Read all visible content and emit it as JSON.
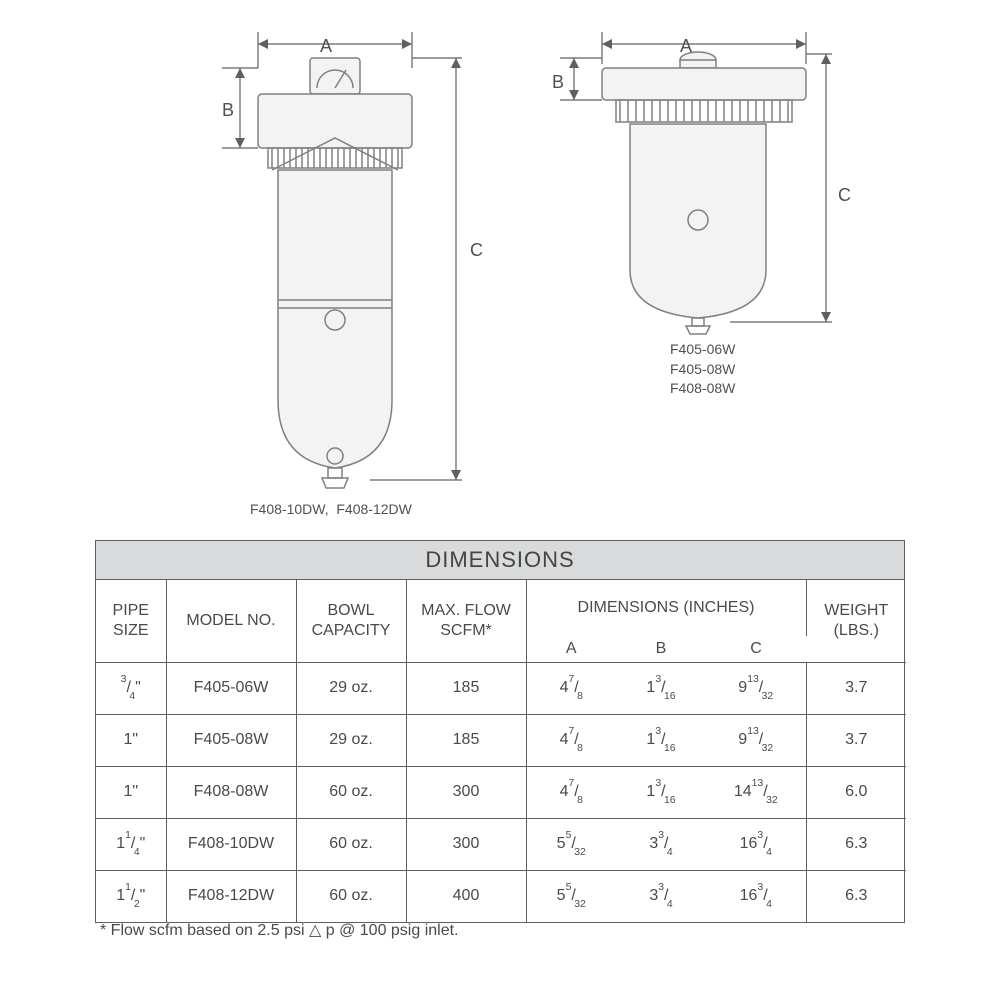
{
  "title": "DIMENSIONS",
  "diagrams": {
    "left": {
      "dim_labels": {
        "A": "A",
        "B": "B",
        "C": "C"
      },
      "caption": "F408-10DW,  F408-12DW"
    },
    "right": {
      "dim_labels": {
        "A": "A",
        "B": "B",
        "C": "C"
      },
      "caption": "F405-06W\nF405-08W\nF408-08W"
    }
  },
  "table": {
    "headers": {
      "pipe_size": "PIPE\nSIZE",
      "model_no": "MODEL NO.",
      "bowl_capacity": "BOWL\nCAPACITY",
      "max_flow": "MAX. FLOW\nSCFM*",
      "dimensions_group": "DIMENSIONS (INCHES)",
      "dim_A": "A",
      "dim_B": "B",
      "dim_C": "C",
      "weight": "WEIGHT\n(LBS.)"
    },
    "rows": [
      {
        "pipe": {
          "w": "3",
          "n": "4",
          "s": "\""
        },
        "model": "F405-06W",
        "bowl": "29 oz.",
        "flow": "185",
        "A": {
          "w": "4",
          "n": "7",
          "d": "8"
        },
        "B": {
          "w": "1",
          "n": "3",
          "d": "16"
        },
        "C": {
          "w": "9",
          "n": "13",
          "d": "32"
        },
        "wt": "3.7"
      },
      {
        "pipe": {
          "p": "1\""
        },
        "model": "F405-08W",
        "bowl": "29 oz.",
        "flow": "185",
        "A": {
          "w": "4",
          "n": "7",
          "d": "8"
        },
        "B": {
          "w": "1",
          "n": "3",
          "d": "16"
        },
        "C": {
          "w": "9",
          "n": "13",
          "d": "32"
        },
        "wt": "3.7"
      },
      {
        "pipe": {
          "p": "1\""
        },
        "model": "F408-08W",
        "bowl": "60 oz.",
        "flow": "300",
        "A": {
          "w": "4",
          "n": "7",
          "d": "8"
        },
        "B": {
          "w": "1",
          "n": "3",
          "d": "16"
        },
        "C": {
          "w": "14",
          "n": "13",
          "d": "32"
        },
        "wt": "6.0"
      },
      {
        "pipe": {
          "w": "1",
          "n": "1",
          "d": "4",
          "s": "\""
        },
        "model": "F408-10DW",
        "bowl": "60 oz.",
        "flow": "300",
        "A": {
          "w": "5",
          "n": "5",
          "d": "32"
        },
        "B": {
          "w": "3",
          "n": "3",
          "d": "4"
        },
        "C": {
          "w": "16",
          "n": "3",
          "d": "4"
        },
        "wt": "6.3"
      },
      {
        "pipe": {
          "w": "1",
          "n": "1",
          "d": "2",
          "s": "\""
        },
        "model": "F408-12DW",
        "bowl": "60 oz.",
        "flow": "400",
        "A": {
          "w": "5",
          "n": "5",
          "d": "32"
        },
        "B": {
          "w": "3",
          "n": "3",
          "d": "4"
        },
        "C": {
          "w": "16",
          "n": "3",
          "d": "4"
        },
        "wt": "6.3"
      }
    ]
  },
  "footnote": "* Flow scfm based on 2.5 psi △ p @ 100 psig inlet.",
  "styling": {
    "table_border_color": "#606060",
    "header_bg": "#d9dadb",
    "text_color": "#4a4a4a",
    "font_family": "Arial",
    "title_fontsize": 22,
    "cell_fontsize": 16,
    "footnote_fontsize": 16,
    "diagram_stroke": "#808080",
    "background": "#ffffff"
  }
}
